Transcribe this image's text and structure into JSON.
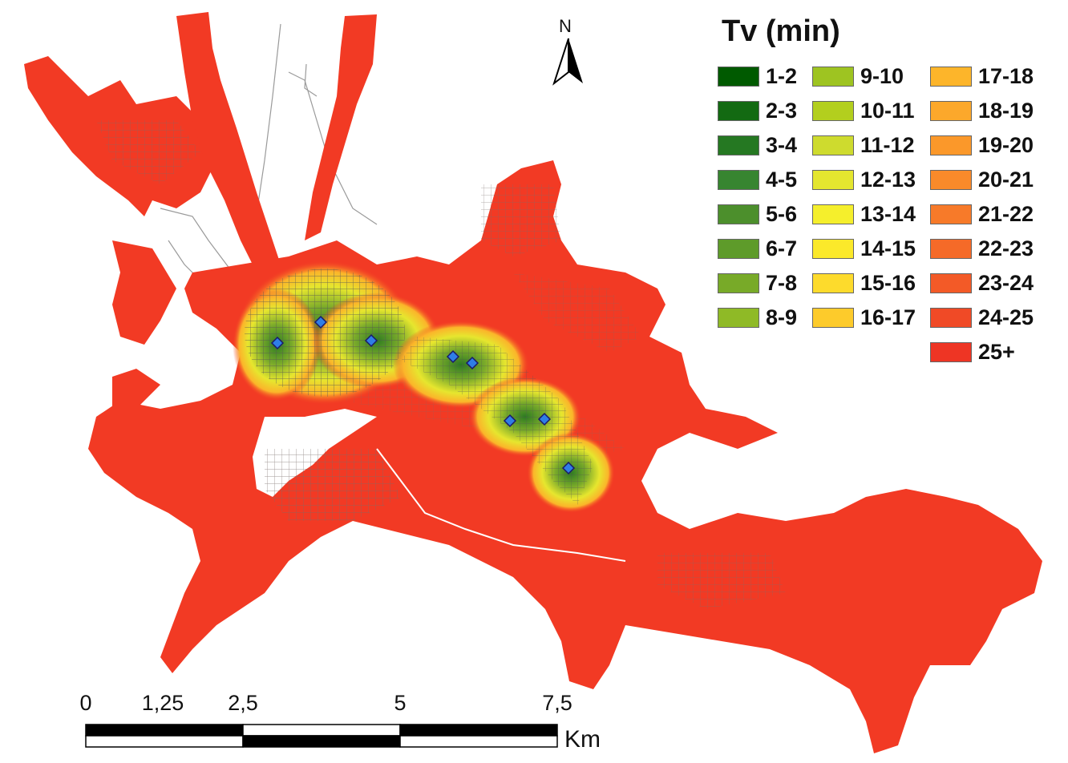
{
  "legend": {
    "title": "Tv (min)",
    "items": [
      {
        "label": "1-2",
        "color": "#005a00"
      },
      {
        "label": "2-3",
        "color": "#136a12"
      },
      {
        "label": "3-4",
        "color": "#257822"
      },
      {
        "label": "4-5",
        "color": "#378530"
      },
      {
        "label": "5-6",
        "color": "#4c8f2c"
      },
      {
        "label": "6-7",
        "color": "#5e9b2a"
      },
      {
        "label": "7-8",
        "color": "#78aa28"
      },
      {
        "label": "8-9",
        "color": "#8fba26"
      },
      {
        "label": "9-10",
        "color": "#9ec421"
      },
      {
        "label": "10-11",
        "color": "#b3cf1e"
      },
      {
        "label": "11-12",
        "color": "#cedb2e"
      },
      {
        "label": "12-13",
        "color": "#e4e62f"
      },
      {
        "label": "13-14",
        "color": "#f5ef2c"
      },
      {
        "label": "14-15",
        "color": "#fbe92a"
      },
      {
        "label": "15-16",
        "color": "#fddb2c"
      },
      {
        "label": "16-17",
        "color": "#fdcb2b"
      },
      {
        "label": "17-18",
        "color": "#fdb52a"
      },
      {
        "label": "18-19",
        "color": "#fca82b"
      },
      {
        "label": "19-20",
        "color": "#fb982a"
      },
      {
        "label": "20-21",
        "color": "#f98a2a"
      },
      {
        "label": "21-22",
        "color": "#f77a29"
      },
      {
        "label": "22-23",
        "color": "#f56a28"
      },
      {
        "label": "23-24",
        "color": "#f35a27"
      },
      {
        "label": "24-25",
        "color": "#f04a26"
      },
      {
        "label": "25+",
        "color": "#ee3524"
      }
    ]
  },
  "north_arrow": {
    "label": "N"
  },
  "scale_bar": {
    "labels": [
      "0",
      "1,25",
      "2,5",
      "5",
      "7,5"
    ],
    "unit": "Km"
  },
  "colors": {
    "area_fill": "#f23a24",
    "road_network": "#7a6d6a",
    "station_marker": "#2f7ee6",
    "outside_road": "#9a9a9a"
  }
}
